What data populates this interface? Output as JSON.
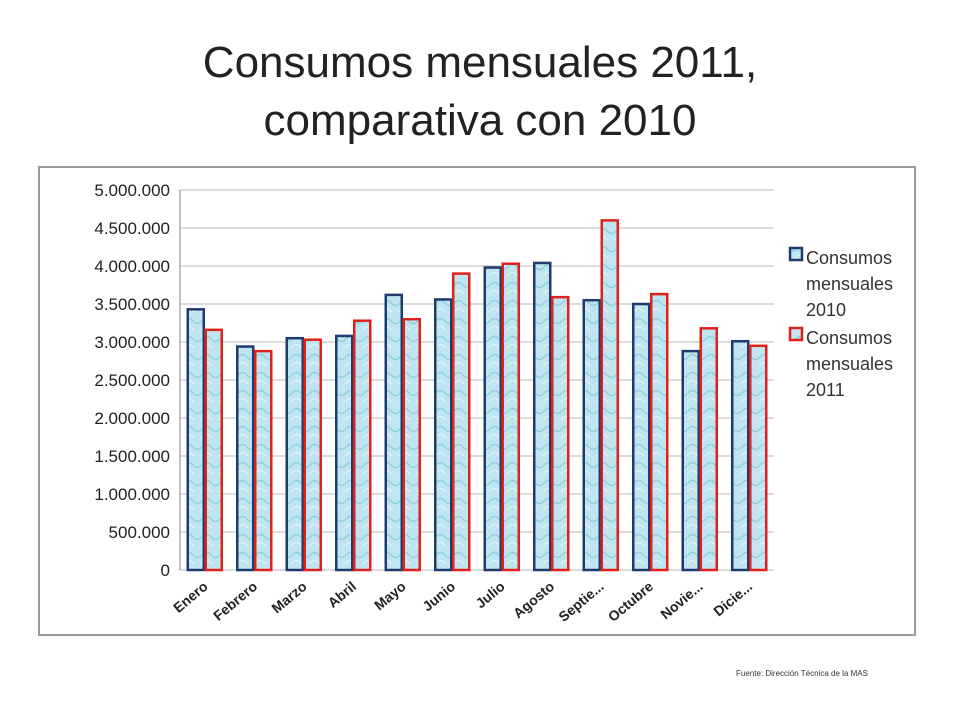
{
  "title": {
    "line1": "Consumos mensuales 2011,",
    "line2": "comparativa con 2010"
  },
  "source": "Fuente: Dirección Técnica de la MAS",
  "chart_data": {
    "type": "bar",
    "categories": [
      "Enero",
      "Febrero",
      "Marzo",
      "Abril",
      "Mayo",
      "Junio",
      "Julio",
      "Agosto",
      "Septie...",
      "Octubre",
      "Novie...",
      "Dicie..."
    ],
    "series": [
      {
        "name": "Consumos mensuales 2010",
        "legend_lines": [
          "Consumos",
          "mensuales",
          "2010"
        ],
        "color": "#1f3b6e",
        "values": [
          3430000,
          2940000,
          3050000,
          3080000,
          3620000,
          3560000,
          3980000,
          4040000,
          3550000,
          3500000,
          2880000,
          3010000
        ]
      },
      {
        "name": "Consumos mensuales 2011",
        "legend_lines": [
          "Consumos",
          "mensuales",
          "2011"
        ],
        "color": "#e0201b",
        "values": [
          3160000,
          2880000,
          3030000,
          3280000,
          3300000,
          3900000,
          4030000,
          3590000,
          4600000,
          3630000,
          3180000,
          2950000
        ]
      }
    ],
    "yticks": [
      "0",
      "500.000",
      "1.000.000",
      "1.500.000",
      "2.000.000",
      "2.500.000",
      "3.000.000",
      "3.500.000",
      "4.000.000",
      "4.500.000",
      "5.000.000"
    ],
    "ylim": [
      0,
      5000000
    ],
    "grid": true,
    "legend_position": "right",
    "bar_fill": "#bfe6f0",
    "grid_color": "#c8c8c8"
  }
}
